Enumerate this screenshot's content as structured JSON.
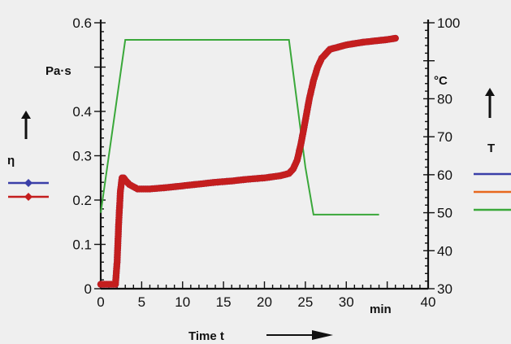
{
  "chart_data": {
    "type": "line",
    "xlabel": "Time t",
    "x_unit": "min",
    "xlim": [
      0,
      40
    ],
    "x_ticks": [
      0,
      5,
      10,
      15,
      20,
      25,
      30,
      40
    ],
    "left_axis": {
      "symbol": "η",
      "unit": "Pa·s",
      "ylim": [
        0,
        0.6
      ],
      "ticks": [
        0,
        0.1,
        0.2,
        0.3,
        0.4,
        0.5,
        0.6
      ],
      "tick_labels": [
        "0",
        "0.1",
        "0.2",
        "0.3",
        "0.4",
        "",
        "0.6"
      ]
    },
    "right_axis": {
      "symbol": "T",
      "unit": "°C",
      "ylim": [
        30,
        100
      ],
      "ticks": [
        30,
        40,
        50,
        60,
        70,
        80,
        90,
        100
      ],
      "tick_labels": [
        "30",
        "40",
        "50",
        "60",
        "70",
        "80",
        "",
        "100"
      ]
    },
    "series": [
      {
        "axis": "left",
        "color": "#c41e1e",
        "marker": "circle",
        "x": [
          0,
          1,
          1.8,
          2.0,
          2.2,
          2.4,
          2.6,
          2.8,
          3.0,
          3.5,
          4.5,
          6,
          8,
          10,
          12,
          14,
          16,
          18,
          20,
          22,
          23,
          23.5,
          24,
          24.5,
          25,
          25.5,
          26,
          26.5,
          27,
          27.5,
          28,
          29,
          30,
          31,
          32,
          33,
          34,
          35,
          36
        ],
        "y": [
          0.01,
          0.01,
          0.01,
          0.06,
          0.15,
          0.22,
          0.25,
          0.25,
          0.245,
          0.235,
          0.225,
          0.225,
          0.228,
          0.232,
          0.236,
          0.24,
          0.243,
          0.247,
          0.25,
          0.255,
          0.26,
          0.27,
          0.29,
          0.33,
          0.38,
          0.43,
          0.47,
          0.5,
          0.52,
          0.53,
          0.54,
          0.545,
          0.55,
          0.553,
          0.556,
          0.558,
          0.56,
          0.562,
          0.565
        ]
      },
      {
        "axis": "left",
        "color": "#3a3fa8",
        "marker": "circle",
        "x": [
          0,
          1,
          1.8,
          2.0,
          2.2,
          2.4,
          2.6,
          2.8,
          3.0,
          3.5,
          4.5,
          6,
          8,
          10,
          12,
          14,
          16,
          18,
          20,
          22,
          23,
          23.5,
          24,
          24.5,
          25,
          25.5,
          26,
          26.5,
          27,
          27.5,
          28,
          29,
          30,
          31,
          32,
          33,
          34,
          35,
          36
        ],
        "y": [
          0.01,
          0.01,
          0.01,
          0.06,
          0.15,
          0.22,
          0.25,
          0.25,
          0.245,
          0.235,
          0.225,
          0.225,
          0.228,
          0.232,
          0.236,
          0.24,
          0.243,
          0.247,
          0.25,
          0.255,
          0.26,
          0.27,
          0.29,
          0.33,
          0.38,
          0.43,
          0.47,
          0.5,
          0.52,
          0.53,
          0.54,
          0.545,
          0.55,
          0.553,
          0.556,
          0.558,
          0.56,
          0.562,
          0.565
        ]
      },
      {
        "axis": "right",
        "color": "#3aa83a",
        "marker": "none",
        "x": [
          0,
          3,
          23,
          25,
          26,
          30,
          34
        ],
        "y": [
          50,
          95.5,
          95.5,
          62,
          49.5,
          49.5,
          49.5
        ]
      }
    ],
    "legend": [
      {
        "axis": "left",
        "color": "#3a3fa8",
        "marker": "diamond"
      },
      {
        "axis": "left",
        "color": "#c41e1e",
        "marker": "diamond"
      },
      {
        "axis": "right",
        "color": "#3a3fa8",
        "marker": "none"
      },
      {
        "axis": "right",
        "color": "#e8681e",
        "marker": "none"
      },
      {
        "axis": "right",
        "color": "#3aa83a",
        "marker": "none"
      }
    ],
    "grid": false
  }
}
